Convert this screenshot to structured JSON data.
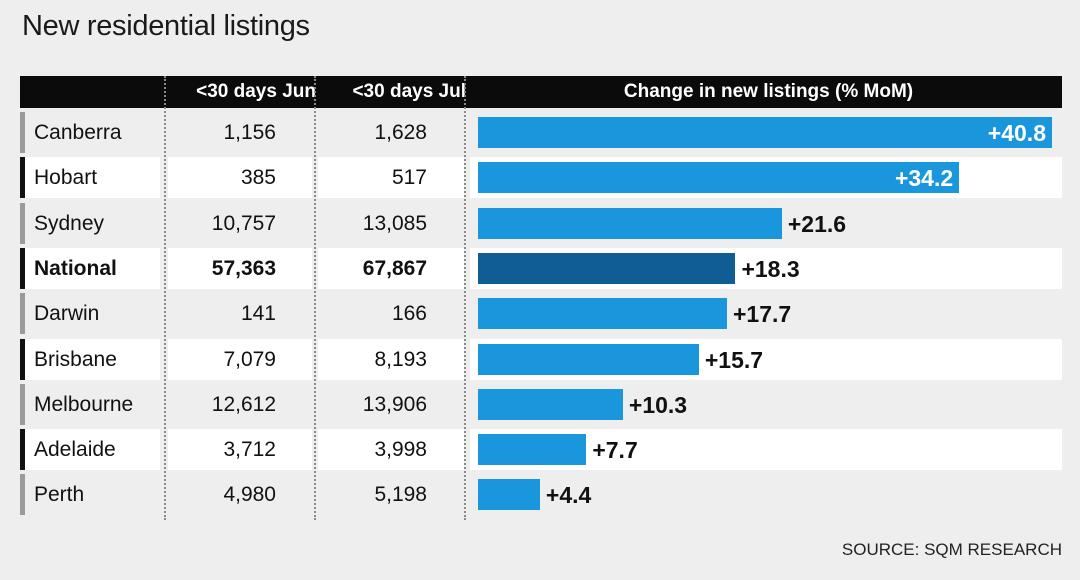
{
  "title": "New residential listings",
  "source": "SOURCE: SQM RESEARCH",
  "colors": {
    "bar": "#1a97dc",
    "bar_highlight": "#0f5d94",
    "header_bg": "#0b0b0b",
    "row_a": "#eeeeee",
    "row_b": "#ffffff",
    "accent_dark": "#111111",
    "accent_grey": "#9a9a9a"
  },
  "chart_data": {
    "type": "bar",
    "columns": [
      "<30 days Jun",
      "<30 days Jul",
      "Change in new listings (% MoM)"
    ],
    "categories": [
      "Canberra",
      "Hobart",
      "Sydney",
      "National",
      "Darwin",
      "Brisbane",
      "Melbourne",
      "Adelaide",
      "Perth"
    ],
    "jun": [
      "1,156",
      "385",
      "10,757",
      "57,363",
      "141",
      "7,079",
      "12,612",
      "3,712",
      "4,980"
    ],
    "jul": [
      "1,628",
      "517",
      "13,085",
      "67,867",
      "166",
      "8,193",
      "13,906",
      "3,998",
      "5,198"
    ],
    "values": [
      40.8,
      34.2,
      21.6,
      18.3,
      17.7,
      15.7,
      10.3,
      7.7,
      4.4
    ],
    "labels": [
      "+40.8",
      "+34.2",
      "+21.6",
      "+18.3",
      "+17.7",
      "+15.7",
      "+10.3",
      "+7.7",
      "+4.4"
    ],
    "highlight": "National",
    "xlim": [
      0,
      40.8
    ]
  }
}
